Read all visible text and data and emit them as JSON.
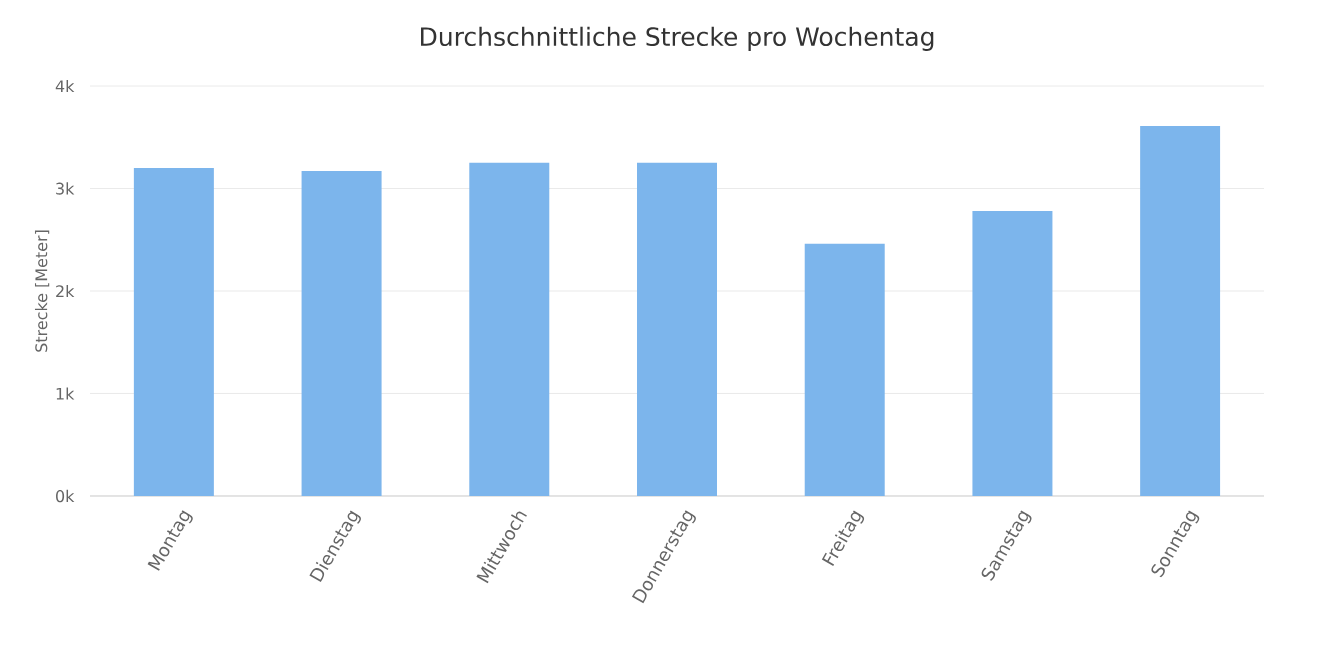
{
  "chart_data": {
    "type": "bar",
    "title": "Durchschnittliche Strecke pro Wochentag",
    "ylabel": "Strecke [Meter]",
    "categories": [
      "Montag",
      "Dienstag",
      "Mittwoch",
      "Donnerstag",
      "Freitag",
      "Samstag",
      "Sonntag"
    ],
    "values": [
      3200,
      3170,
      3250,
      3250,
      2460,
      2780,
      3610
    ],
    "color": "#7cb5ec",
    "ylim": [
      0,
      4000
    ],
    "yticks": [
      {
        "value": 0,
        "label": "0k"
      },
      {
        "value": 1000,
        "label": "1k"
      },
      {
        "value": 2000,
        "label": "2k"
      },
      {
        "value": 3000,
        "label": "3k"
      },
      {
        "value": 4000,
        "label": "4k"
      }
    ],
    "grid": "y"
  }
}
